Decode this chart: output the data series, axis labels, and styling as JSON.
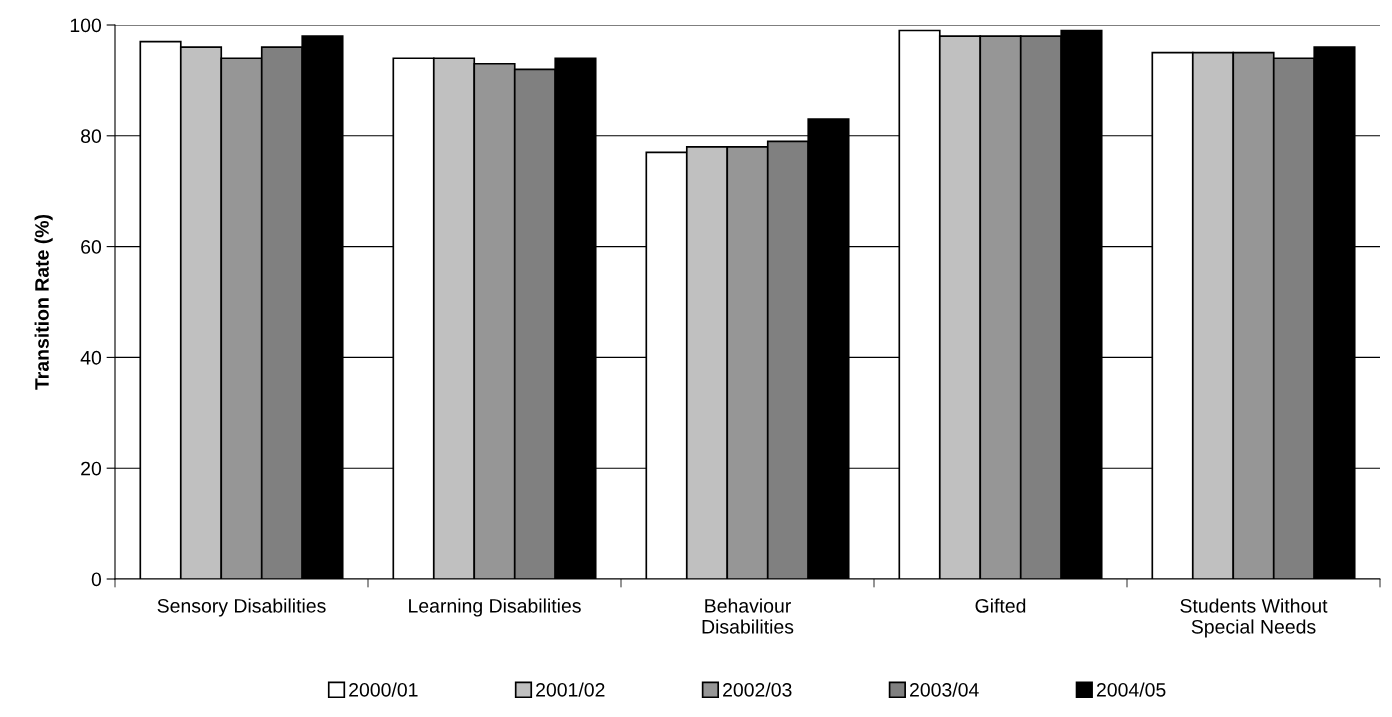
{
  "chart_data": {
    "type": "bar",
    "ylabel": "Transition Rate (%)",
    "categories": [
      "Sensory Disabilities",
      "Learning Disabilities",
      "Behaviour\nDisabilities",
      "Gifted",
      "Students Without\nSpecial Needs"
    ],
    "series": [
      {
        "name": "2000/01",
        "color": "#ffffff",
        "values": [
          97,
          94,
          77,
          99,
          95
        ]
      },
      {
        "name": "2001/02",
        "color": "#c0c0c0",
        "values": [
          96,
          94,
          78,
          98,
          95
        ]
      },
      {
        "name": "2002/03",
        "color": "#969696",
        "values": [
          94,
          93,
          78,
          98,
          95
        ]
      },
      {
        "name": "2003/04",
        "color": "#808080",
        "values": [
          96,
          92,
          79,
          98,
          94
        ]
      },
      {
        "name": "2004/05",
        "color": "#000000",
        "values": [
          98,
          94,
          83,
          99,
          96
        ]
      }
    ],
    "ylim": [
      0,
      100
    ],
    "yticks": [
      0,
      20,
      40,
      60,
      80,
      100
    ],
    "grid": "y",
    "legend": "bottom"
  }
}
